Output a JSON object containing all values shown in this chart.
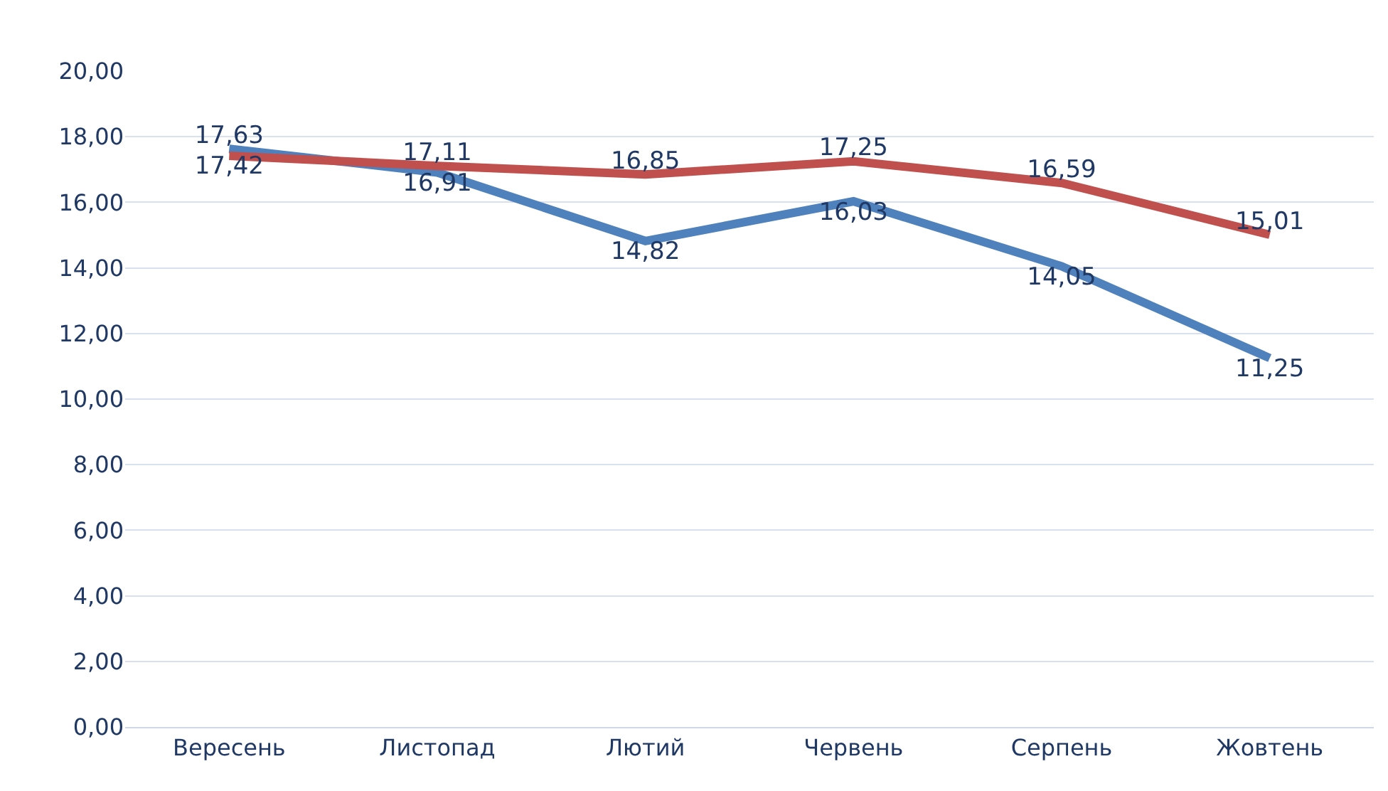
{
  "chart_data": {
    "type": "line",
    "categories": [
      "Вересень",
      "Листопад",
      "Лютий",
      "Червень",
      "Серпень",
      "Жовтень"
    ],
    "series": [
      {
        "color": "#4f81bd",
        "values": [
          17.63,
          16.91,
          14.82,
          16.03,
          14.05,
          11.25
        ],
        "value_labels": [
          "17,63",
          "16,91",
          "14,82",
          "16,03",
          "14,05",
          "11,25"
        ]
      },
      {
        "color": "#c0504d",
        "values": [
          17.42,
          17.11,
          16.85,
          17.25,
          16.59,
          15.01
        ],
        "value_labels": [
          "17,42",
          "17,11",
          "16,85",
          "17,25",
          "16,59",
          "15,01"
        ]
      }
    ],
    "ylim": [
      0,
      20
    ],
    "yticks": [
      {
        "value": 0,
        "label": "0,00"
      },
      {
        "value": 2,
        "label": "2,00"
      },
      {
        "value": 4,
        "label": "4,00"
      },
      {
        "value": 6,
        "label": "6,00"
      },
      {
        "value": 8,
        "label": "8,00"
      },
      {
        "value": 10,
        "label": "10,00"
      },
      {
        "value": 12,
        "label": "12,00"
      },
      {
        "value": 14,
        "label": "14,00"
      },
      {
        "value": 16,
        "label": "16,00"
      },
      {
        "value": 18,
        "label": "18,00"
      },
      {
        "value": 20,
        "label": "20,00"
      }
    ],
    "grid": "y",
    "marker": "none",
    "line_style": "solid"
  }
}
